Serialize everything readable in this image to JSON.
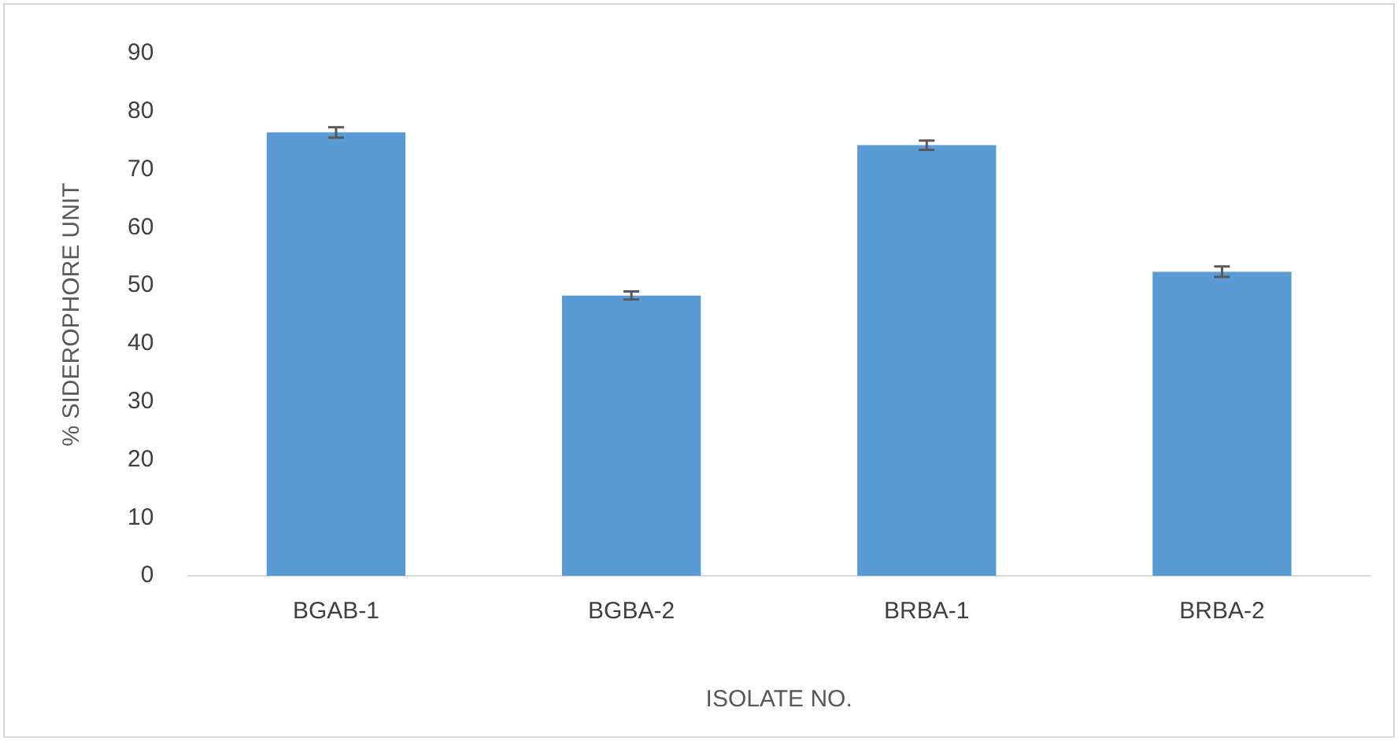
{
  "chart_data": {
    "type": "bar",
    "xlabel": "ISOLATE NO.",
    "ylabel": "% SIDEROPHORE UNIT",
    "categories": [
      "BGAB-1",
      "BGBA-2",
      "BRBA-1",
      "BRBA-2"
    ],
    "values": [
      76.4,
      48.3,
      74.2,
      52.4
    ],
    "errors": [
      0.9,
      0.7,
      0.8,
      0.9
    ],
    "color": "#5b9bd5",
    "ylim": [
      0,
      90
    ],
    "yticks": [
      0,
      10,
      20,
      30,
      40,
      50,
      60,
      70,
      80,
      90
    ],
    "grid": false,
    "legend": false
  }
}
